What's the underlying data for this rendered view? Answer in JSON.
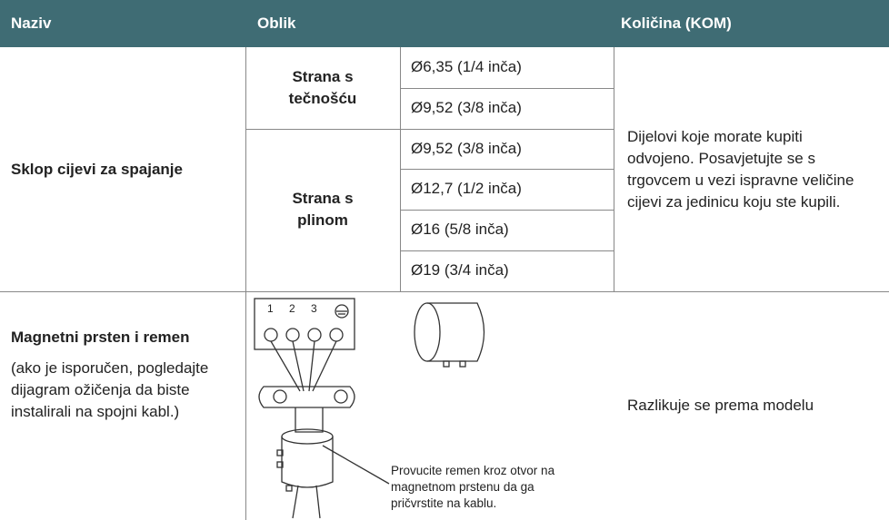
{
  "header": {
    "name": "Naziv",
    "shape": "Oblik",
    "quantity": "Količina (KOM)"
  },
  "rows": [
    {
      "name": "Sklop cijevi za spajanje",
      "groups": [
        {
          "label": "Strana s tečnošću",
          "sizes": [
            "Ø6,35 (1/4 inča)",
            "Ø9,52 (3/8 inča)"
          ]
        },
        {
          "label": "Strana s plinom",
          "sizes": [
            "Ø9,52 (3/8 inča)",
            "Ø12,7 (1/2 inča)",
            "Ø16 (5/8 inča)",
            "Ø19 (3/4 inča)"
          ]
        }
      ],
      "quantity": "Dijelovi koje morate kupiti odvojeno. Posavjetujte se s trgovcem u vezi ispravne veličine cijevi za jedinicu koju ste kupili."
    },
    {
      "name": "Magnetni prsten i remen",
      "note": "(ako je isporučen, pogledajte dijagram ožičenja da biste instalirali na spojni kabl.)",
      "terminals": [
        "1",
        "2",
        "3"
      ],
      "caption": "Provucite remen kroz otvor na magnetnom prstenu da ga pričvrstite na kablu.",
      "quantity": "Razlikuje se prema modelu"
    }
  ]
}
